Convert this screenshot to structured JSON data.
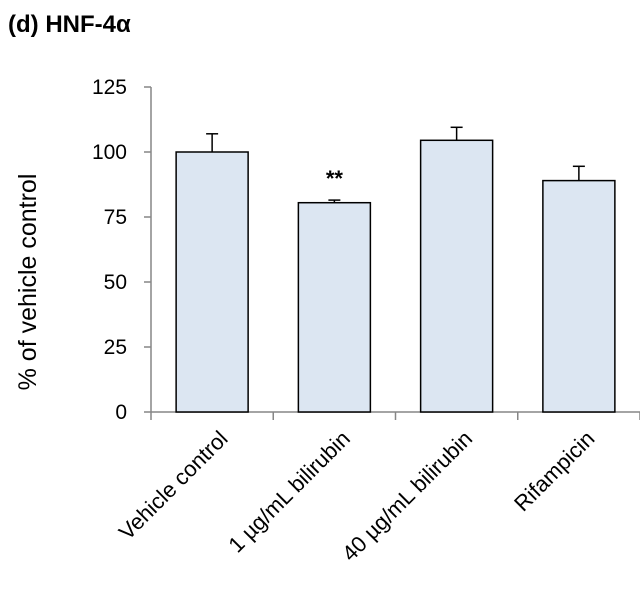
{
  "chart_data": {
    "type": "bar",
    "title": "(d) HNF-4α",
    "ylabel": "% of vehicle control",
    "xlabel": "",
    "ylim": [
      0,
      125
    ],
    "yticks": [
      0,
      25,
      50,
      75,
      100,
      125
    ],
    "categories": [
      "Vehicle control",
      "1 µg/mL bilirubin",
      "40 µg/mL bilirubin",
      "Rifampicin"
    ],
    "values": [
      100,
      80.5,
      104.5,
      89
    ],
    "errors": [
      7,
      1,
      5,
      5.5
    ],
    "annotations": [
      "",
      "**",
      "",
      ""
    ],
    "grid": false,
    "bar_color": "#dce6f2",
    "bar_edge_color": "#000000"
  }
}
